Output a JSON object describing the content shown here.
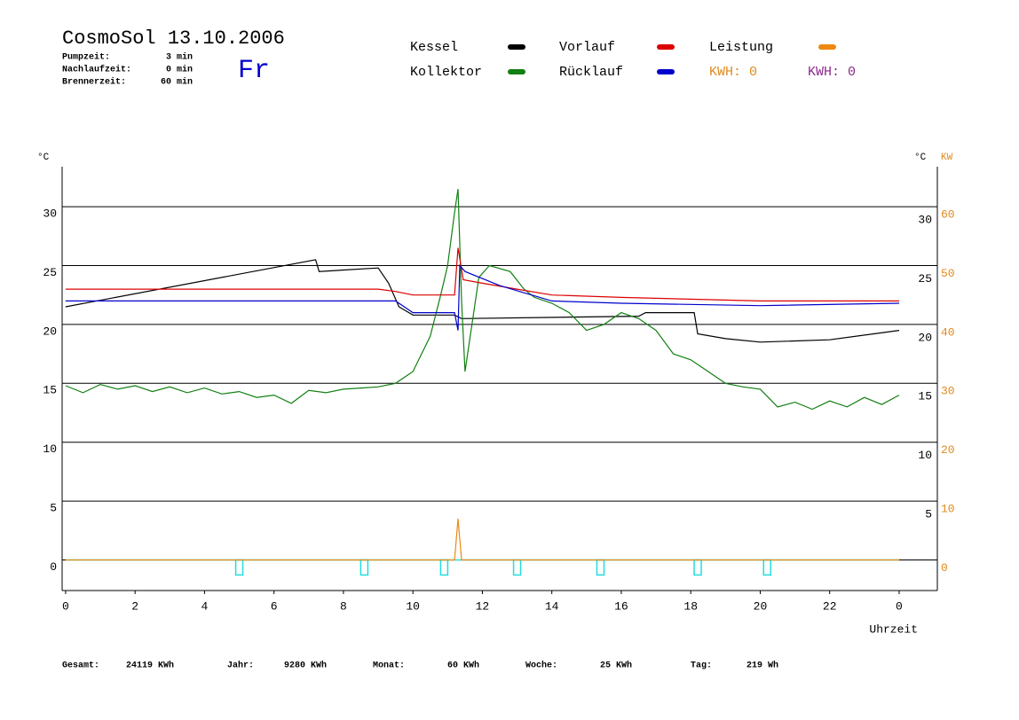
{
  "chart_data": {
    "type": "line",
    "title": "CosmoSol 13.10.2006",
    "info": [
      {
        "label": "Pumpzeit:",
        "value": "3 min"
      },
      {
        "label": "Nachlaufzeit:",
        "value": "0 min"
      },
      {
        "label": "Brennerzeit:",
        "value": "60 min"
      }
    ],
    "weekday": "Fr",
    "y_unit": "°C",
    "y_unit_right": "°C",
    "y2_unit": "KW",
    "x_label": "Uhrzeit",
    "kwh_labels": [
      {
        "text": "KWH: 0",
        "color": "#e08a1e"
      },
      {
        "text": "KWH: 0",
        "color": "#8a2a8a"
      }
    ],
    "xlim": [
      -0.1,
      25.1
    ],
    "xticks": [
      0,
      2,
      4,
      6,
      8,
      10,
      12,
      14,
      16,
      18,
      20,
      22,
      {
        "value": 24,
        "label": "0"
      }
    ],
    "ylim": [
      -2.6,
      33.4
    ],
    "yticks": [
      0,
      5,
      10,
      15,
      20,
      25,
      30
    ],
    "yticks_right": [
      5,
      10,
      15,
      20,
      25,
      30
    ],
    "y2lim": [
      -5.2,
      66.8
    ],
    "y2ticks": [
      0,
      10,
      20,
      30,
      40,
      50,
      60
    ],
    "grid": true,
    "series": [
      {
        "name": "Kessel",
        "color": "#000000",
        "x": [
          0,
          7.2,
          7.3,
          9,
          9.3,
          9.6,
          10,
          11.2,
          11.4,
          16.5,
          16.7,
          18.1,
          18.2,
          19,
          20,
          22,
          24
        ],
        "values": [
          21.5,
          25.5,
          24.5,
          24.8,
          23.5,
          21.5,
          20.8,
          20.8,
          20.5,
          20.7,
          21.0,
          21.0,
          19.2,
          18.8,
          18.5,
          18.7,
          19.5
        ]
      },
      {
        "name": "Kollektor",
        "color": "#118011",
        "x": [
          0,
          0.5,
          1,
          1.5,
          2,
          2.5,
          3,
          3.5,
          4,
          4.5,
          5,
          5.5,
          6,
          6.5,
          7,
          7.5,
          8,
          8.5,
          9,
          9.5,
          10,
          10.5,
          10.8,
          11,
          11.2,
          11.3,
          11.4,
          11.5,
          11.7,
          11.9,
          12.2,
          12.8,
          13.2,
          13.5,
          14,
          14.5,
          15,
          15.5,
          16,
          16.5,
          17,
          17.5,
          18,
          18.5,
          19,
          19.5,
          20,
          20.5,
          21,
          21.5,
          22,
          22.5,
          23,
          23.5,
          24
        ],
        "values": [
          14.8,
          14.2,
          14.9,
          14.5,
          14.8,
          14.3,
          14.7,
          14.2,
          14.6,
          14.1,
          14.3,
          13.8,
          14.0,
          13.3,
          14.4,
          14.2,
          14.5,
          14.6,
          14.7,
          15.0,
          16.0,
          19.0,
          22.5,
          25.0,
          29.5,
          31.5,
          22.0,
          16.0,
          20.0,
          24.0,
          25.0,
          24.5,
          23.0,
          22.3,
          21.8,
          21.0,
          19.5,
          20.0,
          21.0,
          20.5,
          19.5,
          17.5,
          17.0,
          16.0,
          15.0,
          14.7,
          14.5,
          13.0,
          13.4,
          12.8,
          13.5,
          13.0,
          13.8,
          13.2,
          14.0
        ]
      },
      {
        "name": "Vorlauf",
        "color": "#dd0000",
        "x": [
          0,
          9,
          9.5,
          10,
          11.2,
          11.3,
          11.45,
          12,
          13,
          14,
          16,
          20,
          24
        ],
        "values": [
          23,
          23,
          22.8,
          22.5,
          22.5,
          26.5,
          23.8,
          23.5,
          23,
          22.5,
          22.3,
          22,
          22
        ]
      },
      {
        "name": "Rücklauf",
        "color": "#0000cc",
        "x": [
          0,
          9.5,
          10,
          11.2,
          11.3,
          11.35,
          11.5,
          12.5,
          14,
          16,
          20,
          24
        ],
        "values": [
          22,
          22,
          21,
          21,
          19.5,
          25,
          24.5,
          23.3,
          22,
          21.8,
          21.6,
          21.8
        ]
      },
      {
        "name": "Leistung",
        "color": "#ee8811",
        "axis": "y2",
        "x": [
          0,
          11.2,
          11.3,
          11.4,
          24
        ],
        "values": [
          0,
          0,
          7,
          0,
          0
        ]
      }
    ],
    "pump_color": "#22dddd",
    "pump_pulses": [
      5.0,
      8.6,
      10.9,
      13.0,
      15.4,
      18.2,
      20.2
    ],
    "totals": [
      {
        "label": "Gesamt:",
        "value": "24119 KWh"
      },
      {
        "label": "Jahr:",
        "value": "9280 KWh"
      },
      {
        "label": "Monat:",
        "value": "60 KWh"
      },
      {
        "label": "Woche:",
        "value": "25 KWh"
      },
      {
        "label": "Tag:",
        "value": "219 Wh"
      }
    ]
  }
}
